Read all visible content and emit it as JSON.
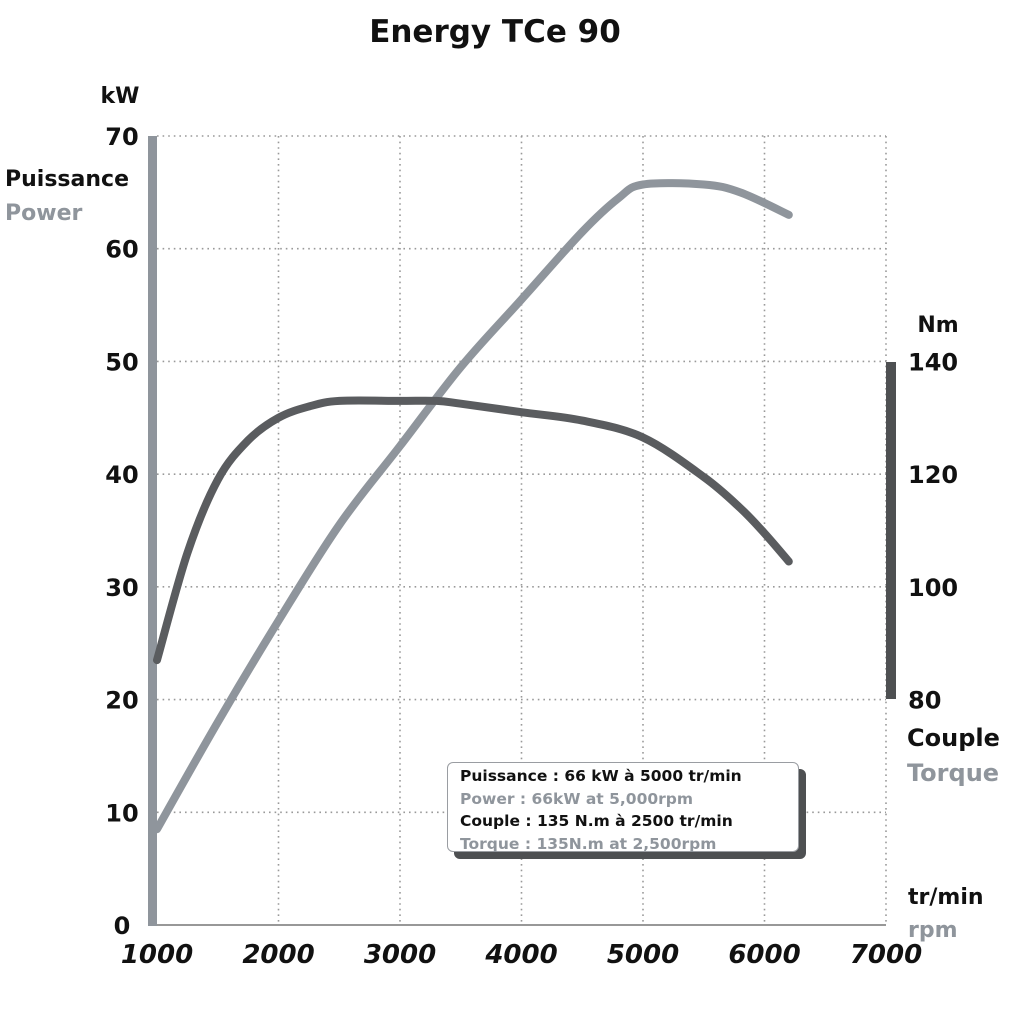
{
  "chart_data": {
    "type": "line",
    "title": "Energy TCe 90",
    "x_unit": {
      "fr": "tr/min",
      "en": "rpm"
    },
    "xlim": [
      1000,
      7000
    ],
    "x_ticks": [
      1000,
      2000,
      3000,
      4000,
      5000,
      6000,
      7000
    ],
    "y_left": {
      "unit": "kW",
      "label_fr": "Puissance",
      "label_en": "Power",
      "ylim": [
        0,
        70
      ],
      "ticks": [
        0,
        10,
        20,
        30,
        40,
        50,
        60,
        70
      ]
    },
    "y_right": {
      "unit": "Nm",
      "label_fr": "Couple",
      "label_en": "Torque",
      "ylim": [
        80,
        140
      ],
      "ticks": [
        80,
        100,
        120,
        140
      ]
    },
    "grid": true,
    "series": [
      {
        "key": "power",
        "axis": "left",
        "color": "#8f959c",
        "x": [
          1000,
          1500,
          2000,
          2500,
          3000,
          3500,
          4000,
          4500,
          4800,
          5000,
          5500,
          5800,
          6200
        ],
        "values": [
          8.5,
          18,
          27,
          35.5,
          42.5,
          49.5,
          55.5,
          61.5,
          64.5,
          65.7,
          65.7,
          65,
          63
        ]
      },
      {
        "key": "torque",
        "axis": "right",
        "color": "#5a5c5f",
        "x": [
          1000,
          1250,
          1500,
          1750,
          2000,
          2250,
          2500,
          3000,
          3300,
          3500,
          4000,
          4500,
          5000,
          5500,
          5800,
          6000,
          6200
        ],
        "values": [
          87,
          106,
          119,
          126,
          130,
          132,
          133,
          133,
          133,
          132.5,
          131,
          129.5,
          126.5,
          119.5,
          114,
          109.5,
          104.5
        ]
      }
    ],
    "legend": [
      {
        "text": "Puissance : 66 kW à 5000 tr/min",
        "tone": "dark"
      },
      {
        "text": "Power : 66kW at 5,000rpm",
        "tone": "light"
      },
      {
        "text": "Couple : 135 N.m à 2500 tr/min",
        "tone": "dark"
      },
      {
        "text": "Torque : 135N.m at 2,500rpm",
        "tone": "light"
      }
    ]
  },
  "colors": {
    "dark_text": "#111111",
    "light_text": "#8f959c",
    "power_line": "#8f959c",
    "torque_line": "#5a5c5f",
    "left_axis_bar": "#8f959c",
    "right_axis_bar": "#4e5052",
    "grid": "#999999"
  }
}
